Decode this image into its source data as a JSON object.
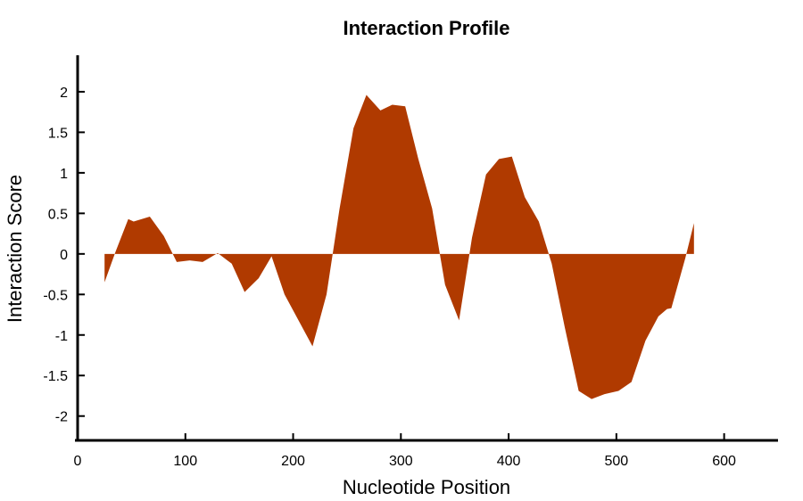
{
  "chart_data": {
    "type": "area",
    "title": "Interaction Profile",
    "xlabel": "Nucleotide Position",
    "ylabel": "Interaction Score",
    "xlim": [
      0,
      650
    ],
    "ylim": [
      -2.3,
      2.45
    ],
    "x_ticks": [
      0,
      100,
      200,
      300,
      400,
      500,
      600
    ],
    "y_ticks": [
      -2,
      -1.5,
      -1,
      -0.5,
      0,
      0.5,
      1,
      1.5,
      2
    ],
    "grid": false,
    "color": "#b03a00",
    "series": [
      {
        "x": [
          25,
          35,
          47,
          52,
          67,
          80,
          92,
          104,
          116,
          130,
          143,
          155,
          168,
          180,
          192,
          205,
          218,
          231,
          243,
          256,
          268,
          281,
          292,
          304,
          316,
          329,
          341,
          354,
          366,
          379,
          391,
          403,
          415,
          428,
          440,
          452,
          465,
          477,
          489,
          502,
          514,
          527,
          539,
          547,
          551,
          564,
          572
        ],
        "y": [
          -0.35,
          0.02,
          0.43,
          0.4,
          0.46,
          0.22,
          -0.1,
          -0.08,
          -0.1,
          0.01,
          -0.12,
          -0.47,
          -0.3,
          -0.03,
          -0.5,
          -0.82,
          -1.14,
          -0.5,
          0.55,
          1.55,
          1.96,
          1.77,
          1.84,
          1.82,
          1.18,
          0.56,
          -0.38,
          -0.82,
          0.2,
          0.98,
          1.17,
          1.2,
          0.7,
          0.4,
          -0.12,
          -0.9,
          -1.69,
          -1.79,
          -1.73,
          -1.69,
          -1.58,
          -1.07,
          -0.77,
          -0.68,
          -0.67,
          -0.05,
          0.38
        ]
      }
    ]
  }
}
